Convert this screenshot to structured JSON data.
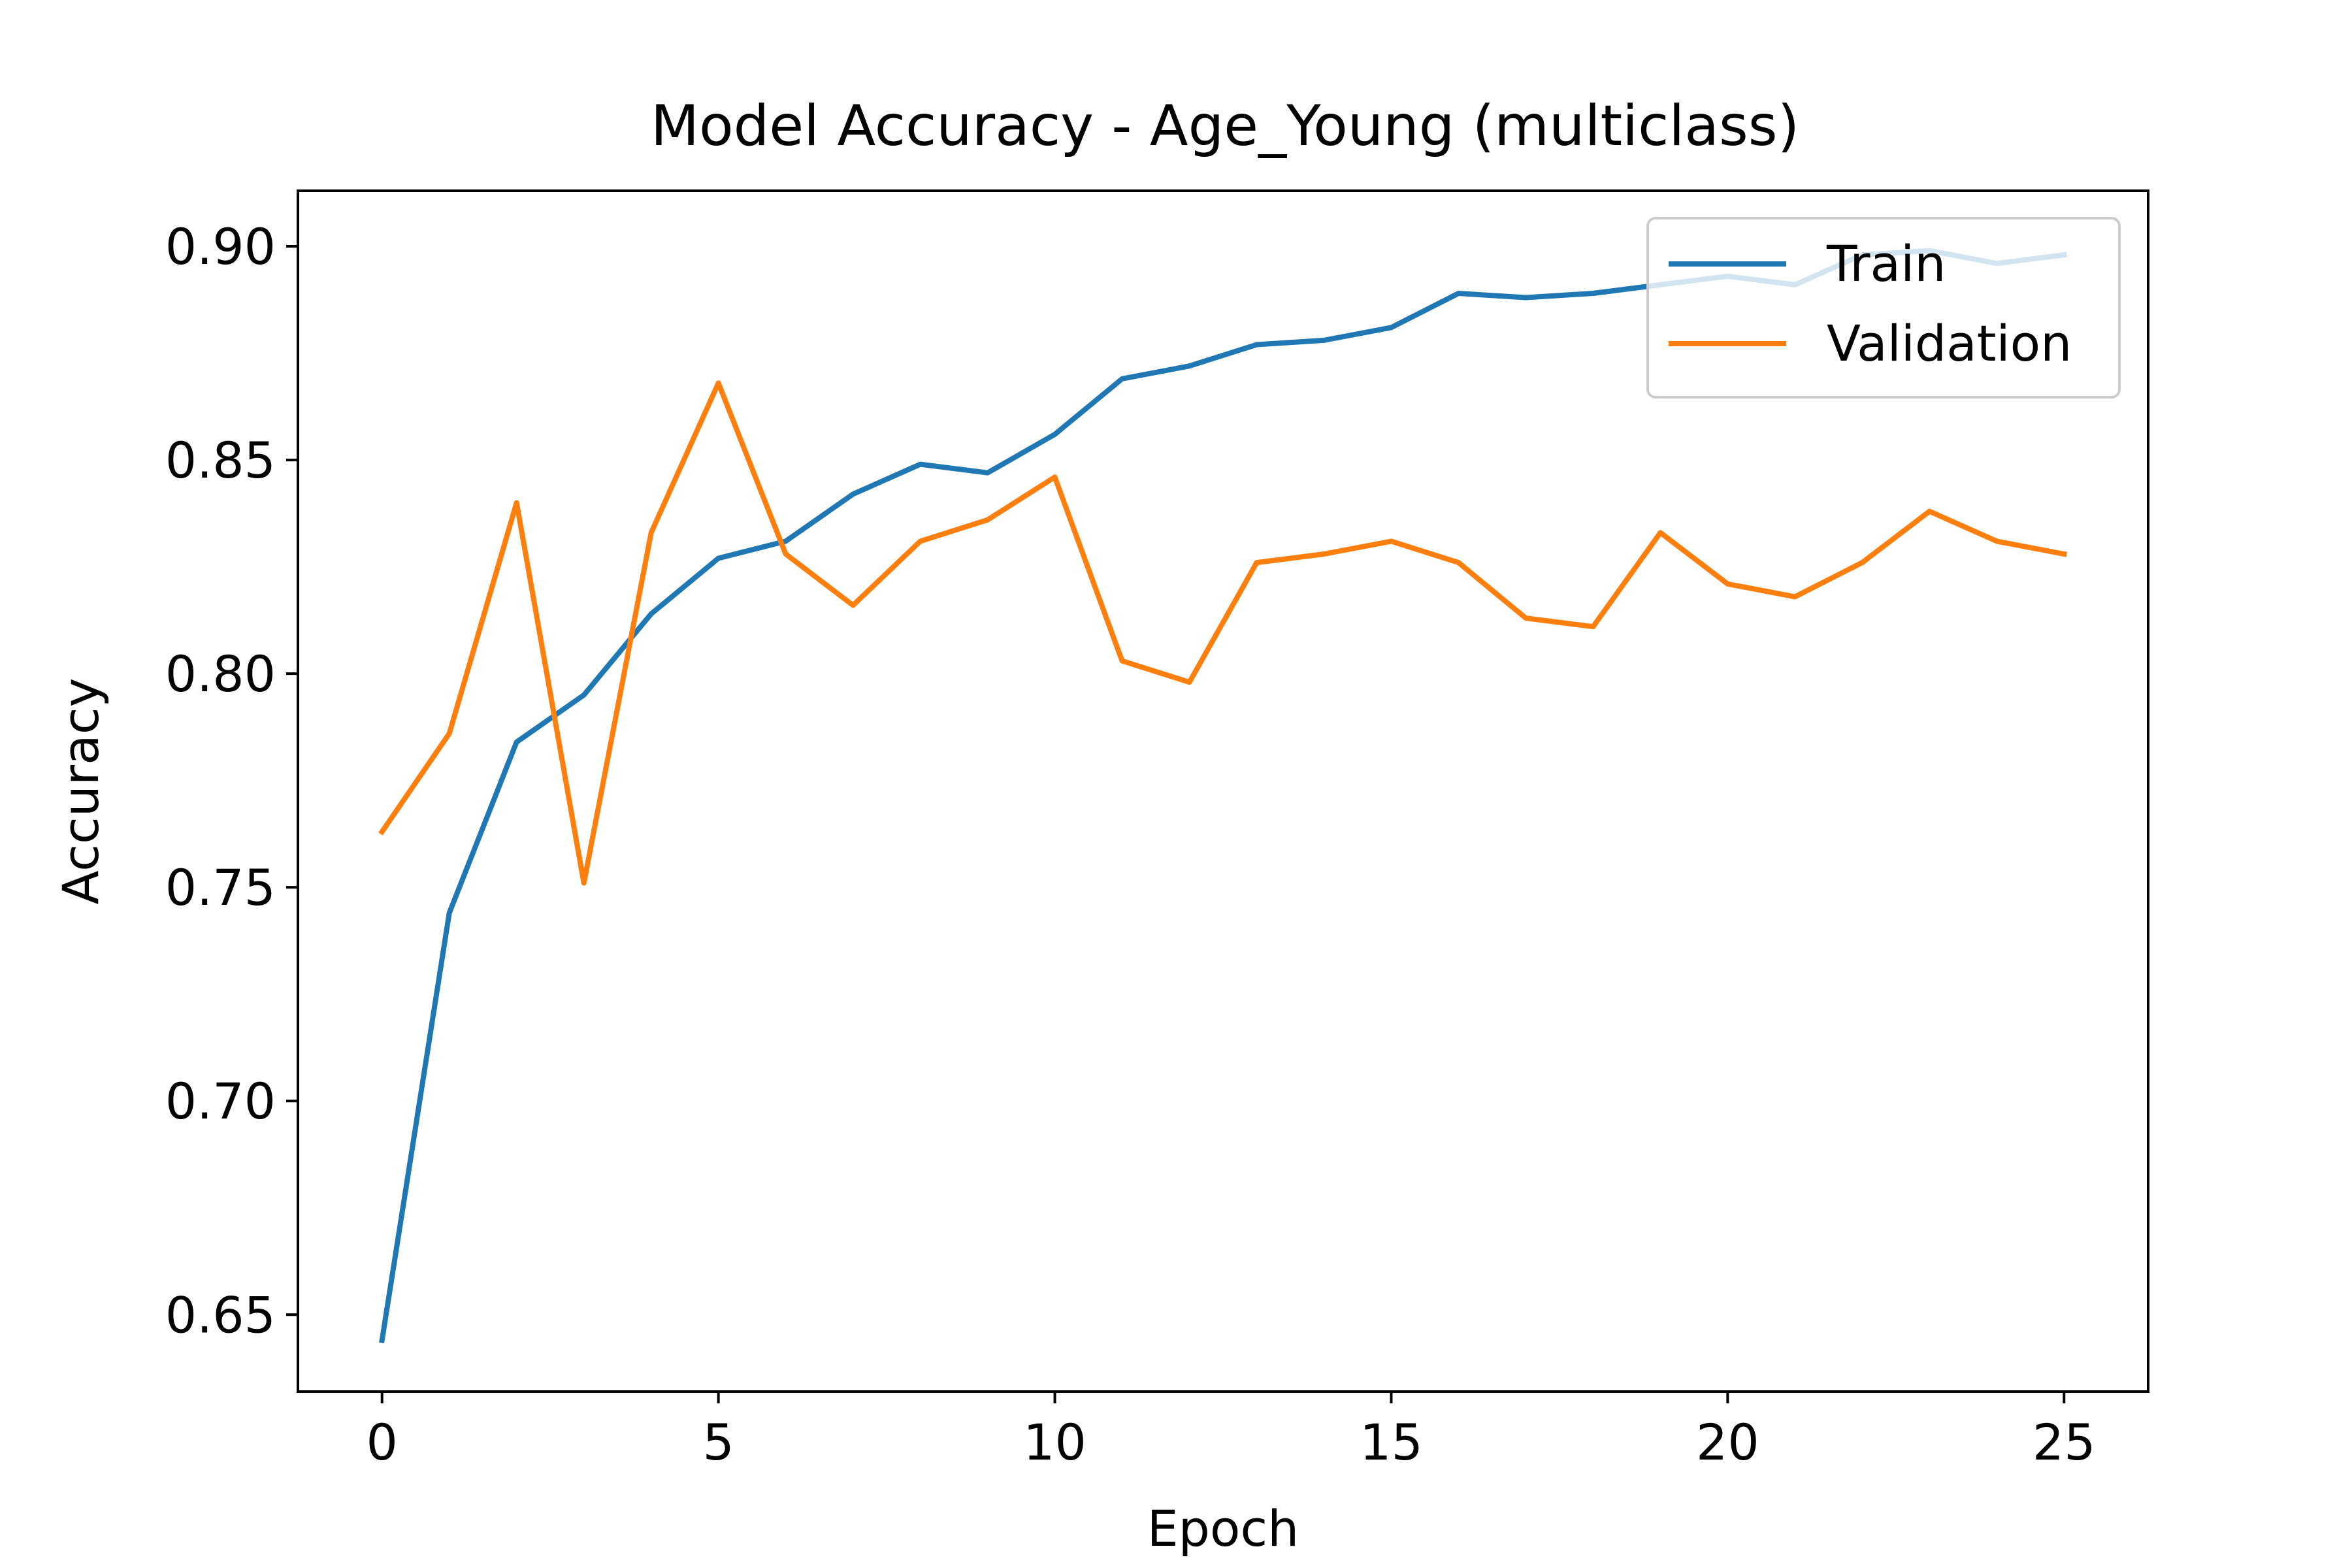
{
  "chart_data": {
    "type": "line",
    "title": "Model Accuracy - Age_Young (multiclass)",
    "xlabel": "Epoch",
    "ylabel": "Accuracy",
    "xlim": [
      -1.25,
      26.25
    ],
    "ylim": [
      0.632,
      0.913
    ],
    "xticks": [
      0,
      5,
      10,
      15,
      20,
      25
    ],
    "yticks": [
      0.65,
      0.7,
      0.75,
      0.8,
      0.85,
      0.9
    ],
    "xtick_labels": [
      "0",
      "5",
      "10",
      "15",
      "20",
      "25"
    ],
    "ytick_labels": [
      "0.65",
      "0.70",
      "0.75",
      "0.80",
      "0.85",
      "0.90"
    ],
    "grid": false,
    "legend_position": "upper right",
    "x": [
      0,
      1,
      2,
      3,
      4,
      5,
      6,
      7,
      8,
      9,
      10,
      11,
      12,
      13,
      14,
      15,
      16,
      17,
      18,
      19,
      20,
      21,
      22,
      23,
      24,
      25
    ],
    "series": [
      {
        "name": "Train",
        "color": "#1f77b4",
        "values": [
          0.644,
          0.744,
          0.784,
          0.795,
          0.814,
          0.827,
          0.831,
          0.842,
          0.849,
          0.847,
          0.856,
          0.869,
          0.872,
          0.877,
          0.878,
          0.881,
          0.889,
          0.888,
          0.889,
          0.891,
          0.893,
          0.891,
          0.898,
          0.899,
          0.896,
          0.898
        ]
      },
      {
        "name": "Validation",
        "color": "#ff7f0e",
        "values": [
          0.763,
          0.786,
          0.84,
          0.751,
          0.833,
          0.868,
          0.828,
          0.816,
          0.831,
          0.836,
          0.846,
          0.803,
          0.798,
          0.826,
          0.828,
          0.831,
          0.826,
          0.813,
          0.811,
          0.833,
          0.821,
          0.818,
          0.826,
          0.838,
          0.831,
          0.828
        ]
      }
    ]
  }
}
